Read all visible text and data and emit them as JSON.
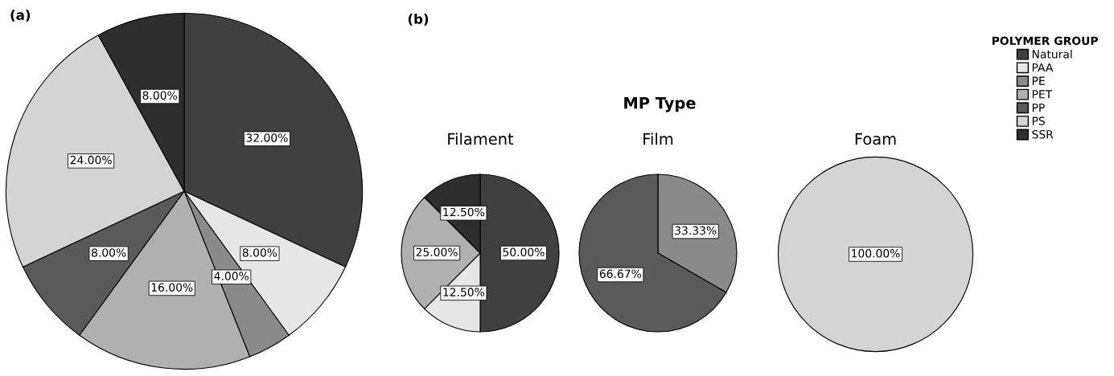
{
  "chart_data": [
    {
      "type": "pie",
      "title": "(a)",
      "categories": [
        "Natural",
        "PAA",
        "PE",
        "PET",
        "PP",
        "PS",
        "SSR"
      ],
      "values": [
        32,
        8,
        4,
        16,
        8,
        24,
        8
      ],
      "value_labels": [
        "32.00%",
        "8.00%",
        "4.00%",
        "16.00%",
        "8.00%",
        "24.00%",
        "8.00%"
      ],
      "colors": [
        "#404040",
        "#e6e6e6",
        "#8a8a8a",
        "#b0b0b0",
        "#5a5a5a",
        "#d4d4d4",
        "#2e2e2e"
      ],
      "legend": "right",
      "legend_title": "POLYMER GROUP"
    },
    {
      "type": "pie",
      "title": "Filament",
      "annotations": [
        "(b)",
        "MP Type"
      ],
      "categories": [
        null,
        null,
        null,
        null
      ],
      "values": [
        50,
        12.5,
        25,
        12.5
      ],
      "value_labels": [
        "50.00%",
        "12.50%",
        "25.00%",
        "12.50%"
      ],
      "colors": [
        "#404040",
        "#e6e6e6",
        "#b0b0b0",
        "#2e2e2e"
      ]
    },
    {
      "type": "pie",
      "title": "Film",
      "categories": [
        null,
        null
      ],
      "values": [
        33.33,
        66.67
      ],
      "value_labels": [
        "33.33%",
        "66.67%"
      ],
      "colors": [
        "#8a8a8a",
        "#5a5a5a"
      ]
    },
    {
      "type": "pie",
      "title": "Foam",
      "categories": [
        null
      ],
      "values": [
        100
      ],
      "value_labels": [
        "100.00%"
      ],
      "colors": [
        "#d4d4d4"
      ]
    }
  ]
}
